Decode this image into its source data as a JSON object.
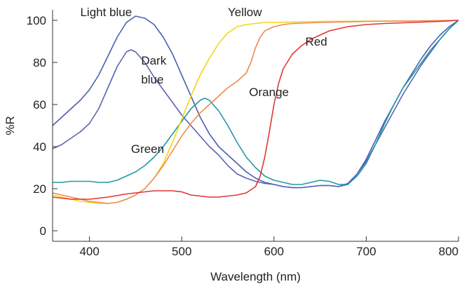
{
  "chart_data": {
    "type": "line",
    "title": "",
    "xlabel": "Wavelength (nm)",
    "ylabel": "%R",
    "xlim": [
      360,
      800
    ],
    "ylim": [
      -5,
      105
    ],
    "x_ticks": [
      400,
      500,
      600,
      700,
      800
    ],
    "y_ticks": [
      0,
      20,
      40,
      60,
      80,
      100
    ],
    "grid": false,
    "legend": "none (series labeled inline)",
    "series": [
      {
        "name": "Light blue",
        "color": "#4a5fb0",
        "points": [
          [
            360,
            50
          ],
          [
            370,
            54
          ],
          [
            380,
            58
          ],
          [
            390,
            62
          ],
          [
            400,
            67
          ],
          [
            410,
            74
          ],
          [
            420,
            83
          ],
          [
            430,
            92
          ],
          [
            440,
            99
          ],
          [
            450,
            102
          ],
          [
            460,
            101
          ],
          [
            470,
            98
          ],
          [
            480,
            92
          ],
          [
            490,
            84
          ],
          [
            500,
            74
          ],
          [
            510,
            64
          ],
          [
            520,
            54
          ],
          [
            530,
            46
          ],
          [
            540,
            40
          ],
          [
            550,
            36
          ],
          [
            560,
            32
          ],
          [
            570,
            28
          ],
          [
            580,
            25
          ],
          [
            590,
            23
          ],
          [
            600,
            22
          ],
          [
            610,
            21
          ],
          [
            620,
            20.5
          ],
          [
            630,
            20.5
          ],
          [
            640,
            21
          ],
          [
            650,
            21.5
          ],
          [
            660,
            21.5
          ],
          [
            670,
            21
          ],
          [
            680,
            22
          ],
          [
            690,
            27
          ],
          [
            700,
            34
          ],
          [
            710,
            43
          ],
          [
            720,
            52
          ],
          [
            730,
            60
          ],
          [
            740,
            68
          ],
          [
            750,
            75
          ],
          [
            760,
            82
          ],
          [
            770,
            88
          ],
          [
            780,
            93
          ],
          [
            790,
            97
          ],
          [
            800,
            100
          ]
        ]
      },
      {
        "name": "Dark blue",
        "color": "#5a63b5",
        "points": [
          [
            360,
            39
          ],
          [
            370,
            41
          ],
          [
            380,
            44
          ],
          [
            390,
            47
          ],
          [
            400,
            51
          ],
          [
            410,
            58
          ],
          [
            420,
            68
          ],
          [
            430,
            78
          ],
          [
            440,
            85
          ],
          [
            445,
            86
          ],
          [
            450,
            85
          ],
          [
            460,
            80
          ],
          [
            470,
            73
          ],
          [
            480,
            67
          ],
          [
            490,
            61
          ],
          [
            500,
            55
          ],
          [
            510,
            50
          ],
          [
            520,
            45
          ],
          [
            530,
            40
          ],
          [
            540,
            36
          ],
          [
            550,
            31
          ],
          [
            560,
            27
          ],
          [
            570,
            25
          ],
          [
            580,
            23.5
          ],
          [
            590,
            22.5
          ],
          [
            600,
            22
          ],
          [
            610,
            21
          ],
          [
            620,
            20.5
          ],
          [
            630,
            20.5
          ],
          [
            640,
            21
          ],
          [
            650,
            21.5
          ],
          [
            660,
            21.5
          ],
          [
            670,
            21
          ],
          [
            680,
            22.5
          ],
          [
            690,
            27
          ],
          [
            700,
            33
          ],
          [
            710,
            41
          ],
          [
            720,
            49
          ],
          [
            730,
            57
          ],
          [
            740,
            65
          ],
          [
            750,
            72
          ],
          [
            760,
            79
          ],
          [
            770,
            85
          ],
          [
            780,
            91
          ],
          [
            790,
            96
          ],
          [
            800,
            100
          ]
        ]
      },
      {
        "name": "Green",
        "color": "#1f9aa3",
        "points": [
          [
            360,
            23
          ],
          [
            370,
            23
          ],
          [
            380,
            23.5
          ],
          [
            390,
            23.5
          ],
          [
            400,
            23.5
          ],
          [
            410,
            23
          ],
          [
            420,
            23
          ],
          [
            430,
            24
          ],
          [
            440,
            26
          ],
          [
            450,
            28
          ],
          [
            460,
            31
          ],
          [
            470,
            35
          ],
          [
            480,
            40
          ],
          [
            490,
            46
          ],
          [
            500,
            52
          ],
          [
            510,
            58
          ],
          [
            520,
            62
          ],
          [
            525,
            63
          ],
          [
            530,
            62
          ],
          [
            540,
            57
          ],
          [
            550,
            50
          ],
          [
            560,
            42
          ],
          [
            570,
            35
          ],
          [
            580,
            30
          ],
          [
            590,
            26
          ],
          [
            600,
            24
          ],
          [
            610,
            23
          ],
          [
            620,
            22
          ],
          [
            630,
            22
          ],
          [
            640,
            23
          ],
          [
            650,
            24
          ],
          [
            660,
            23.5
          ],
          [
            670,
            22
          ],
          [
            680,
            22
          ],
          [
            690,
            26
          ],
          [
            700,
            32
          ],
          [
            710,
            41
          ],
          [
            720,
            51
          ],
          [
            730,
            60
          ],
          [
            740,
            68
          ],
          [
            750,
            74
          ],
          [
            760,
            80
          ],
          [
            770,
            86
          ],
          [
            780,
            91
          ],
          [
            790,
            96
          ],
          [
            800,
            100
          ]
        ]
      },
      {
        "name": "Yellow",
        "color": "#f5d516",
        "points": [
          [
            360,
            17
          ],
          [
            370,
            16
          ],
          [
            380,
            15
          ],
          [
            390,
            14
          ],
          [
            400,
            13.5
          ],
          [
            410,
            13
          ],
          [
            420,
            13
          ],
          [
            430,
            13.5
          ],
          [
            440,
            15
          ],
          [
            450,
            17
          ],
          [
            460,
            20
          ],
          [
            470,
            25
          ],
          [
            480,
            32
          ],
          [
            490,
            42
          ],
          [
            500,
            53
          ],
          [
            510,
            64
          ],
          [
            520,
            74
          ],
          [
            530,
            82
          ],
          [
            540,
            89
          ],
          [
            550,
            94
          ],
          [
            560,
            97
          ],
          [
            570,
            98
          ],
          [
            580,
            98.5
          ],
          [
            590,
            99
          ],
          [
            600,
            99
          ],
          [
            620,
            99.2
          ],
          [
            650,
            99.5
          ],
          [
            700,
            99.6
          ],
          [
            750,
            99.7
          ],
          [
            800,
            100
          ]
        ]
      },
      {
        "name": "Orange",
        "color": "#ee8a55",
        "points": [
          [
            360,
            18
          ],
          [
            370,
            17
          ],
          [
            380,
            16
          ],
          [
            390,
            15
          ],
          [
            400,
            14
          ],
          [
            410,
            13.5
          ],
          [
            420,
            13
          ],
          [
            430,
            13.5
          ],
          [
            440,
            15
          ],
          [
            450,
            17
          ],
          [
            460,
            20
          ],
          [
            470,
            25
          ],
          [
            480,
            31
          ],
          [
            490,
            38
          ],
          [
            500,
            45
          ],
          [
            510,
            51
          ],
          [
            520,
            56
          ],
          [
            530,
            60
          ],
          [
            540,
            64
          ],
          [
            550,
            68
          ],
          [
            560,
            71
          ],
          [
            570,
            75
          ],
          [
            575,
            80
          ],
          [
            580,
            87
          ],
          [
            585,
            92
          ],
          [
            590,
            95
          ],
          [
            600,
            97
          ],
          [
            610,
            98
          ],
          [
            620,
            98.5
          ],
          [
            650,
            99
          ],
          [
            700,
            99.5
          ],
          [
            750,
            99.7
          ],
          [
            800,
            100
          ]
        ]
      },
      {
        "name": "Red",
        "color": "#e23535",
        "points": [
          [
            360,
            16
          ],
          [
            380,
            15
          ],
          [
            400,
            15
          ],
          [
            420,
            16
          ],
          [
            440,
            17.5
          ],
          [
            460,
            18.5
          ],
          [
            470,
            19
          ],
          [
            480,
            19
          ],
          [
            490,
            19
          ],
          [
            500,
            18.5
          ],
          [
            510,
            17
          ],
          [
            520,
            16.5
          ],
          [
            530,
            16
          ],
          [
            540,
            16
          ],
          [
            550,
            16.5
          ],
          [
            560,
            17
          ],
          [
            570,
            18
          ],
          [
            580,
            21
          ],
          [
            585,
            26
          ],
          [
            590,
            35
          ],
          [
            595,
            47
          ],
          [
            600,
            60
          ],
          [
            605,
            70
          ],
          [
            610,
            77
          ],
          [
            620,
            84
          ],
          [
            630,
            88
          ],
          [
            640,
            91
          ],
          [
            650,
            93
          ],
          [
            660,
            95
          ],
          [
            670,
            96
          ],
          [
            680,
            97
          ],
          [
            690,
            97.5
          ],
          [
            700,
            98
          ],
          [
            720,
            98.5
          ],
          [
            750,
            99
          ],
          [
            780,
            99.5
          ],
          [
            800,
            100
          ]
        ]
      }
    ],
    "annotations": [
      {
        "text": "Light blue",
        "x": 390,
        "y": 102
      },
      {
        "text": "Dark",
        "x": 456,
        "y": 79
      },
      {
        "text": "blue",
        "x": 456,
        "y": 70
      },
      {
        "text": "Yellow",
        "x": 550,
        "y": 102
      },
      {
        "text": "Red",
        "x": 634,
        "y": 88
      },
      {
        "text": "Orange",
        "x": 573,
        "y": 64
      },
      {
        "text": "Green",
        "x": 445,
        "y": 37
      }
    ]
  }
}
